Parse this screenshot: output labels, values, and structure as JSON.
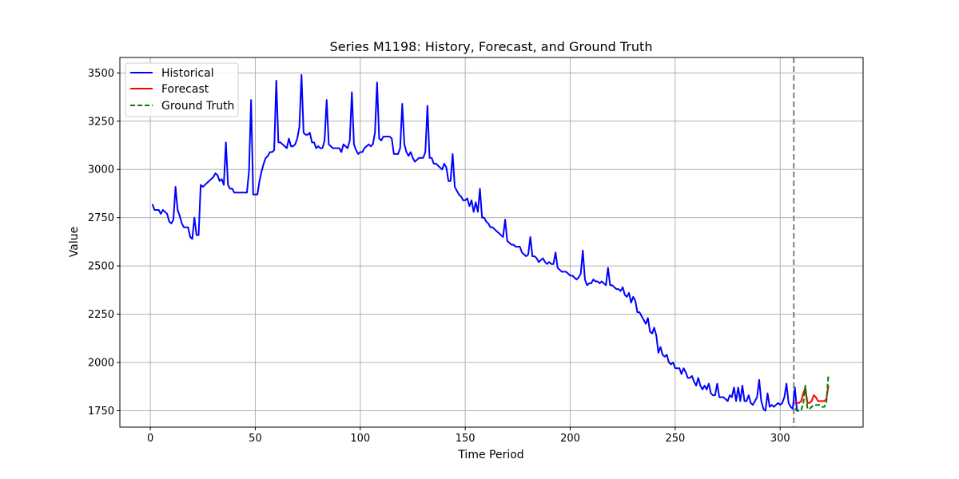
{
  "chart_data": {
    "type": "line",
    "title": "Series M1198: History, Forecast, and Ground Truth",
    "xlabel": "Time Period",
    "ylabel": "Value",
    "xlim": [
      -14.5,
      339.5
    ],
    "ylim": [
      1665,
      3580
    ],
    "xticks": [
      0,
      50,
      100,
      150,
      200,
      250,
      300
    ],
    "yticks": [
      1750,
      2000,
      2250,
      2500,
      2750,
      3000,
      3250,
      3500
    ],
    "grid": true,
    "legend_position": "top-left",
    "forecast_start_marker": 306.5,
    "series": [
      {
        "name": "Historical",
        "color": "#0000ff",
        "style": "solid",
        "x_start": 1,
        "values": [
          2820,
          2790,
          2790,
          2790,
          2770,
          2790,
          2780,
          2770,
          2730,
          2720,
          2740,
          2910,
          2790,
          2760,
          2720,
          2700,
          2700,
          2700,
          2650,
          2640,
          2750,
          2660,
          2660,
          2920,
          2910,
          2920,
          2930,
          2940,
          2950,
          2960,
          2980,
          2970,
          2940,
          2950,
          2920,
          3140,
          2920,
          2900,
          2900,
          2880,
          2880,
          2880,
          2880,
          2880,
          2880,
          2880,
          2990,
          3360,
          2870,
          2870,
          2870,
          2940,
          2990,
          3030,
          3060,
          3070,
          3090,
          3090,
          3100,
          3460,
          3140,
          3140,
          3130,
          3120,
          3110,
          3160,
          3120,
          3120,
          3130,
          3160,
          3220,
          3490,
          3190,
          3180,
          3180,
          3190,
          3140,
          3140,
          3110,
          3120,
          3110,
          3110,
          3150,
          3360,
          3130,
          3120,
          3110,
          3110,
          3110,
          3110,
          3090,
          3130,
          3120,
          3110,
          3150,
          3400,
          3130,
          3100,
          3080,
          3090,
          3090,
          3110,
          3120,
          3130,
          3120,
          3130,
          3190,
          3450,
          3160,
          3150,
          3170,
          3170,
          3170,
          3170,
          3160,
          3080,
          3080,
          3080,
          3110,
          3340,
          3130,
          3090,
          3070,
          3090,
          3060,
          3040,
          3050,
          3060,
          3060,
          3060,
          3090,
          3330,
          3060,
          3060,
          3030,
          3030,
          3020,
          3010,
          3000,
          3030,
          3010,
          2940,
          2940,
          3080,
          2910,
          2890,
          2870,
          2860,
          2840,
          2840,
          2850,
          2810,
          2840,
          2780,
          2830,
          2780,
          2900,
          2750,
          2750,
          2730,
          2720,
          2700,
          2700,
          2690,
          2680,
          2670,
          2660,
          2650,
          2740,
          2630,
          2620,
          2610,
          2610,
          2600,
          2600,
          2600,
          2570,
          2560,
          2550,
          2560,
          2650,
          2550,
          2550,
          2540,
          2520,
          2530,
          2540,
          2520,
          2510,
          2520,
          2510,
          2510,
          2570,
          2490,
          2480,
          2470,
          2470,
          2470,
          2460,
          2450,
          2450,
          2440,
          2430,
          2440,
          2460,
          2580,
          2430,
          2400,
          2410,
          2410,
          2430,
          2420,
          2420,
          2410,
          2420,
          2410,
          2400,
          2490,
          2400,
          2400,
          2390,
          2380,
          2380,
          2370,
          2390,
          2350,
          2340,
          2360,
          2310,
          2340,
          2320,
          2260,
          2260,
          2240,
          2220,
          2200,
          2230,
          2160,
          2150,
          2180,
          2140,
          2050,
          2080,
          2040,
          2030,
          2040,
          2000,
          1990,
          2000,
          1970,
          1970,
          1970,
          1940,
          1970,
          1950,
          1920,
          1920,
          1930,
          1900,
          1880,
          1920,
          1880,
          1860,
          1880,
          1860,
          1890,
          1840,
          1830,
          1830,
          1890,
          1820,
          1820,
          1820,
          1810,
          1800,
          1830,
          1820,
          1870,
          1800,
          1870,
          1800,
          1880,
          1800,
          1800,
          1830,
          1790,
          1780,
          1800,
          1820,
          1910,
          1800,
          1760,
          1750,
          1840,
          1770,
          1780,
          1770,
          1780,
          1790,
          1780,
          1790,
          1820,
          1890,
          1790,
          1770,
          1760,
          1870,
          1750,
          1750
        ]
      },
      {
        "name": "Forecast",
        "color": "#ff0000",
        "style": "solid",
        "x_start": 307,
        "values": [
          1790,
          1790,
          1790,
          1800,
          1840,
          1870,
          1790,
          1790,
          1800,
          1830,
          1820,
          1800,
          1800,
          1800,
          1800,
          1810,
          1880
        ]
      },
      {
        "name": "Ground Truth",
        "color": "#008000",
        "style": "dashed",
        "x_start": 307,
        "values": [
          1760,
          1755,
          1750,
          1750,
          1790,
          1880,
          1760,
          1760,
          1770,
          1780,
          1780,
          1780,
          1780,
          1770,
          1770,
          1790,
          1940
        ]
      }
    ]
  }
}
